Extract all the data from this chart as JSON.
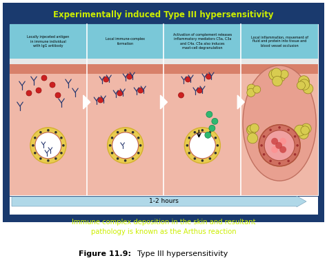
{
  "title": "Experimentally induced Type III hypersensitivity",
  "title_color": "#ccee00",
  "background_color": "#1a3a6e",
  "panel_bg": "#f0b8a8",
  "caption_bg": "#7ac8d8",
  "skin_color": "#d8806a",
  "vessel_ring_color": "#d4b030",
  "vessel_ring_fill": "#e8cc50",
  "vessel_inner_color": "white",
  "vessel_border_color": "#c06050",
  "dot_color": "#303030",
  "ab_color": "#2a3a70",
  "antigen_color": "#cc2020",
  "complement_color": "#30b870",
  "inflam_blob_color": "#d8cc50",
  "inflam_blob_edge": "#908020",
  "figure_caption_bold": "Figure 11.9:",
  "figure_caption_text": "  Type III hypersensitivity",
  "subtitle": "Immune complex deposition in the skin and resultant\npathology is known as the Arthus reaction",
  "subtitle_color": "#ccee00",
  "panel_labels": [
    "Locally injeceted antigen\nin immune individual\nwith IgG antibody",
    "Local immune-complex\nformation",
    "Activation of complement releases\ninflammatory mediators C5a, C3a\nand C4a. C5a also induces\nmast-cell degranulation",
    "Local inflammation, movement of\nfluid and protein into tissue and\nblood vessel occlusion"
  ],
  "time_label": "1-2 hours",
  "outer_bg": "#ffffff",
  "arrow_fill": "#b0d8e8",
  "arrow_edge": "#80a8c0",
  "white_strip_color": "#e8e8e8"
}
